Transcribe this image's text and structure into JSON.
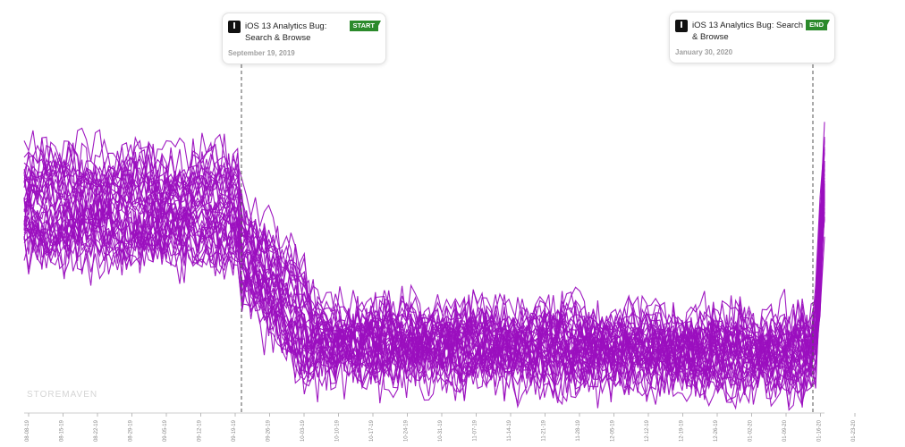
{
  "brand": {
    "watermark": "STOREMAVEN",
    "line_color": "#9b0fbf",
    "flag_color": "#2b8a2b"
  },
  "annotations": [
    {
      "icon": "I",
      "title": "iOS 13 Analytics Bug: Search & Browse",
      "flag": "START",
      "date": "September 19, 2019"
    },
    {
      "icon": "I",
      "title": "iOS 13 Analytics Bug: Search & Browse",
      "flag": "END",
      "date": "January 30, 2020"
    }
  ],
  "chart_data": {
    "type": "line",
    "title": "",
    "xlabel": "",
    "ylabel": "",
    "yaxis_labels": "none",
    "series_count": 38,
    "x_tick_labels": [
      "08-08-19",
      "08-15-19",
      "08-22-19",
      "08-29-19",
      "09-05-19",
      "09-12-19",
      "09-19-19",
      "09-26-19",
      "10-03-19",
      "10-10-19",
      "10-17-19",
      "10-24-19",
      "10-31-19",
      "11-07-19",
      "11-14-19",
      "11-21-19",
      "11-28-19",
      "12-05-19",
      "12-12-19",
      "12-19-19",
      "12-26-19",
      "01-02-20",
      "01-09-20",
      "01-16-20",
      "01-23-20"
    ],
    "markers": [
      {
        "label": "START",
        "date": "09-19-19"
      },
      {
        "label": "END",
        "date": "01-30-20"
      }
    ],
    "approx_level_by_period": [
      {
        "period": "08-08-19 to 09-19-19",
        "relative_level": 0.68
      },
      {
        "period": "09-19-19 to 10-10-19",
        "relative_level": 0.55
      },
      {
        "period": "10-10-19 to 01-28-20",
        "relative_level": 0.22
      },
      {
        "period": "01-30-20",
        "relative_level": 0.75
      }
    ]
  }
}
